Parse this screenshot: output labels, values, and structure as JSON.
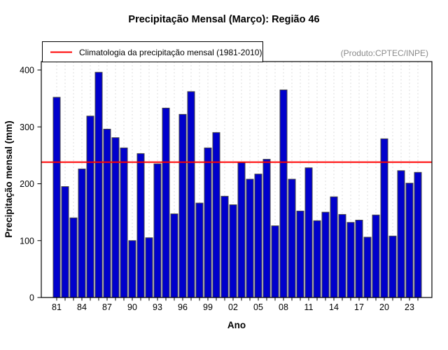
{
  "chart_data": {
    "type": "bar",
    "title": "Precipitação Mensal (Março): Região 46",
    "note": "(Produto:CPTEC/INPE)",
    "legend": "Climatologia da precipitação mensal (1981-2010)",
    "xlabel": "Ano",
    "ylabel": "Precipitação mensal (mm)",
    "ylim": [
      0,
      415
    ],
    "yticks": [
      "0",
      "100",
      "200",
      "300",
      "400"
    ],
    "ytick_values": [
      0,
      100,
      200,
      300,
      400
    ],
    "x_tick_labels": [
      "81",
      "84",
      "87",
      "90",
      "93",
      "96",
      "99",
      "02",
      "05",
      "08",
      "11",
      "14",
      "17",
      "20",
      "23"
    ],
    "x_label_every": 3,
    "categories": [
      "81",
      "82",
      "83",
      "84",
      "85",
      "86",
      "87",
      "88",
      "89",
      "90",
      "91",
      "92",
      "93",
      "94",
      "95",
      "96",
      "97",
      "98",
      "99",
      "00",
      "01",
      "02",
      "03",
      "04",
      "05",
      "06",
      "07",
      "08",
      "09",
      "10",
      "11",
      "12",
      "13",
      "14",
      "15",
      "16",
      "17",
      "18",
      "19",
      "20",
      "21",
      "22",
      "23",
      "24"
    ],
    "years": [
      1981,
      1982,
      1983,
      1984,
      1985,
      1986,
      1987,
      1988,
      1989,
      1990,
      1991,
      1992,
      1993,
      1994,
      1995,
      1996,
      1997,
      1998,
      1999,
      2000,
      2001,
      2002,
      2003,
      2004,
      2005,
      2006,
      2007,
      2008,
      2009,
      2010,
      2011,
      2012,
      2013,
      2014,
      2015,
      2016,
      2017,
      2018,
      2019,
      2020,
      2021,
      2022,
      2023,
      2024
    ],
    "values": [
      352,
      195,
      140,
      226,
      319,
      396,
      296,
      281,
      263,
      100,
      253,
      105,
      235,
      333,
      147,
      322,
      362,
      166,
      263,
      290,
      178,
      163,
      237,
      208,
      217,
      243,
      126,
      365,
      208,
      152,
      228,
      135,
      150,
      177,
      146,
      132,
      136,
      106,
      145,
      279,
      108,
      223,
      201,
      220
    ],
    "climatology_value": 238,
    "legend_position": "top-left",
    "grid": "vertical-dashed",
    "colors": {
      "bar_fill": "#0000CC",
      "bar_stroke": "#444444",
      "climatology_line": "#FF0000",
      "grid_line": "#DCDCDC",
      "axis": "#000000",
      "note_text": "#8a8a8a"
    }
  }
}
